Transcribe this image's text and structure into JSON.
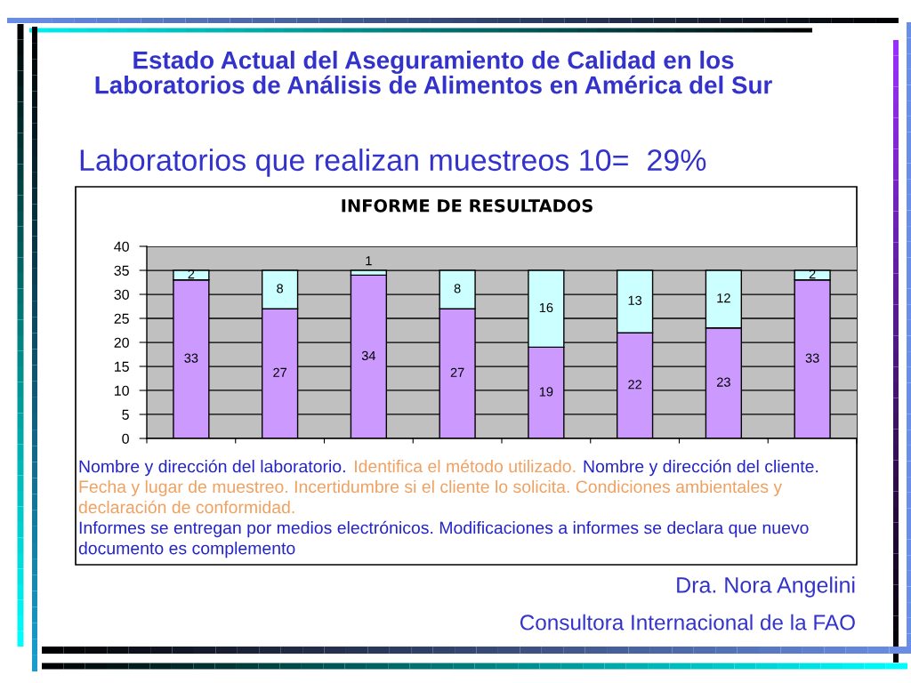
{
  "chart_data": {
    "type": "bar",
    "stacked": true,
    "title": "Estado Actual del Aseguramiento de Calidad en los\nLaboratorios de Análisis de Alimentos en América del Sur",
    "subtitle": "Laboratorios que realizan muestreos 10=  29%",
    "categories": [
      null,
      null,
      null,
      null,
      null,
      null,
      null,
      null
    ],
    "series": [
      {
        "color": "#cc99ff",
        "values": [
          33,
          27,
          34,
          27,
          19,
          22,
          23,
          33
        ]
      },
      {
        "color": "#ccffff",
        "values": [
          2,
          8,
          1,
          8,
          16,
          13,
          12,
          2
        ]
      }
    ],
    "ylim": [
      0,
      40
    ],
    "yticks": [
      0,
      5,
      10,
      15,
      20,
      25,
      30,
      35,
      40
    ],
    "grid": "y",
    "data_labels": true,
    "annotations": [
      "INFORME DE RESULTADOS",
      "Nombre y dirección del laboratorio.",
      "Identifica el método utilizado.",
      "Nombre y dirección del cliente.",
      "Fecha y lugar de muestreo. Incertidumbre si el cliente lo solicita. Condiciones ambientales y declaración de conformidad.",
      "Informes se entregan por medios electrónicos. Modificaciones a informes se declara que nuevo documento es complemento",
      "Dra. Nora Angelini",
      "Consultora Internacional de la FAO"
    ]
  }
}
